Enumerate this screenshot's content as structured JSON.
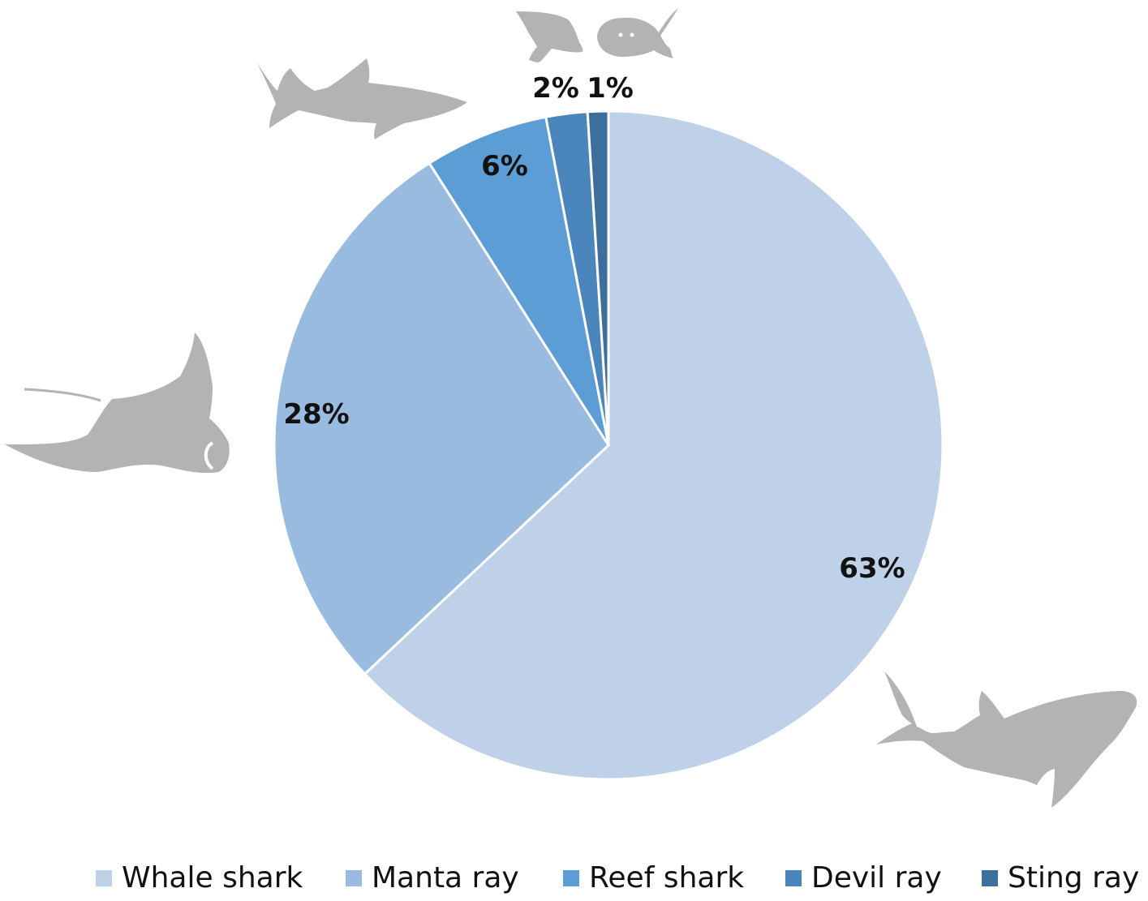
{
  "chart_data": {
    "type": "pie",
    "title": "",
    "start_angle_deg": 0,
    "direction": "clockwise",
    "slices": [
      {
        "label": "Whale shark",
        "value": 63,
        "display": "63%",
        "color": "#bfd1e9"
      },
      {
        "label": "Manta ray",
        "value": 28,
        "display": "28%",
        "color": "#98bbdf"
      },
      {
        "label": "Reef shark",
        "value": 6,
        "display": "6%",
        "color": "#5b9dd4"
      },
      {
        "label": "Devil ray",
        "value": 2,
        "display": "2%",
        "color": "#4a86bb"
      },
      {
        "label": "Sting ray",
        "value": 1,
        "display": "1%",
        "color": "#3d6f9e"
      }
    ],
    "legend": "bottom",
    "data_labels": "percent"
  },
  "decorations": {
    "icons": [
      "whale-shark-icon",
      "manta-ray-icon",
      "reef-shark-icon",
      "devil-ray-icon",
      "sting-ray-icon"
    ],
    "icon_color": "#b3b3b3"
  }
}
